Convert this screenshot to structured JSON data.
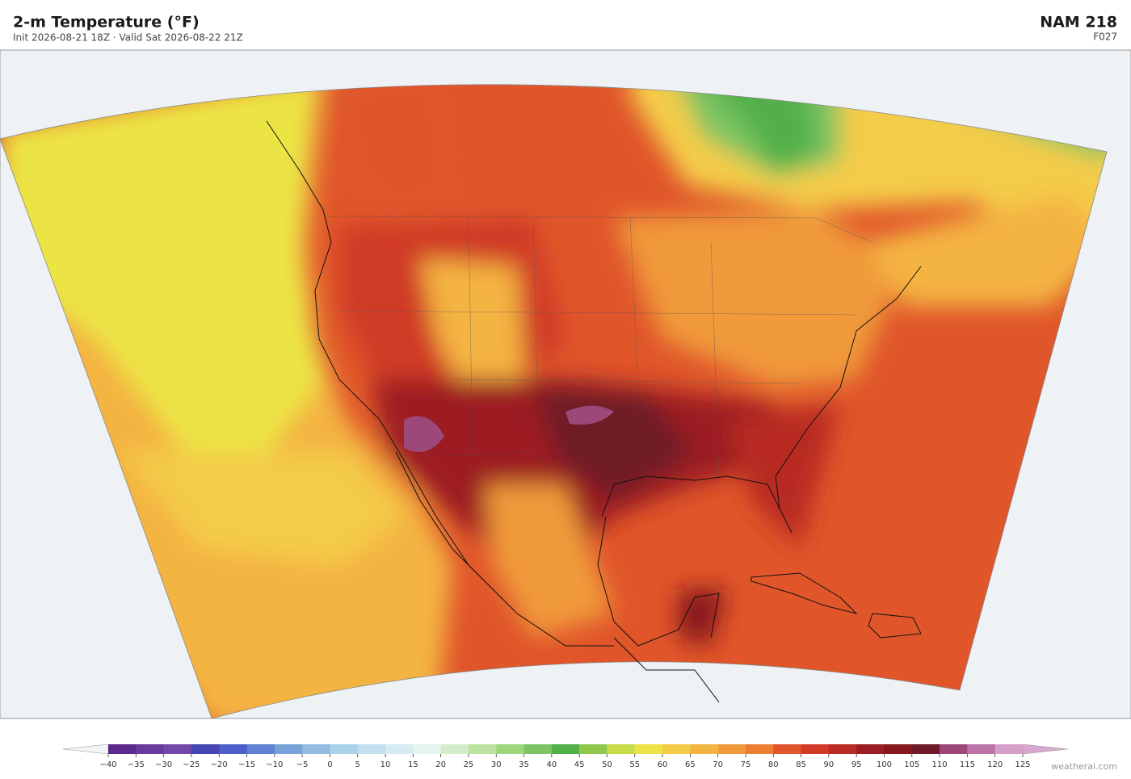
{
  "header": {
    "title": "2-m Temperature  (°F)",
    "subtitle": "Init 2026-08-21 18Z   ·   Valid Sat 2026-08-22 21Z",
    "model": "NAM  218",
    "forecast_hour": "F027"
  },
  "colorbar": {
    "ticks": [
      {
        "value": -40,
        "label": "−40"
      },
      {
        "value": -35,
        "label": "−35"
      },
      {
        "value": -30,
        "label": "−30"
      },
      {
        "value": -25,
        "label": "−25"
      },
      {
        "value": -20,
        "label": "−20"
      },
      {
        "value": -15,
        "label": "−15"
      },
      {
        "value": -10,
        "label": "−10"
      },
      {
        "value": -5,
        "label": "−5"
      },
      0,
      5,
      10,
      15,
      20,
      25,
      30,
      35,
      40,
      45,
      50,
      55,
      60,
      65,
      70,
      75,
      80,
      85,
      90,
      95,
      100,
      105,
      110,
      115,
      120,
      125
    ],
    "colors": [
      "#5b2a8c",
      "#6a3b9a",
      "#7349a8",
      "#4646b4",
      "#4a5fc8",
      "#5f82d2",
      "#7aa2da",
      "#92bce2",
      "#aad2ea",
      "#c2e0ee",
      "#d6ecf0",
      "#e4f4ec",
      "#d4ecc8",
      "#bce4a0",
      "#9ed67e",
      "#7cc464",
      "#52b04a",
      "#8ec84c",
      "#c8dc4a",
      "#ece444",
      "#f4cc48",
      "#f4b442",
      "#f09a3a",
      "#ec7e34",
      "#e0562a",
      "#d03a26",
      "#b82a24",
      "#9c1e22",
      "#86181e",
      "#6e1a28",
      "#9c4878",
      "#bc74a8",
      "#d4a0c8"
    ],
    "under_color": "#f4f4f4",
    "over_color": "#d8a8d0"
  },
  "watermark": "weatherai.com"
}
